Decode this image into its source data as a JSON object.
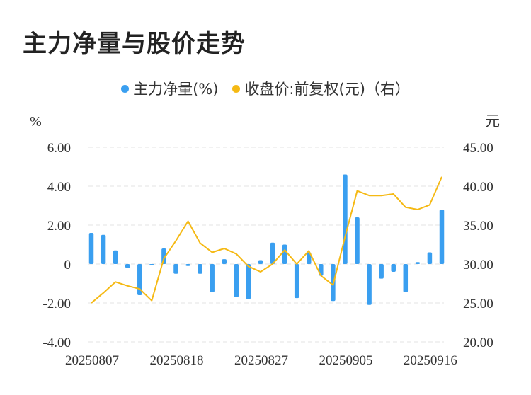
{
  "title": "主力净量与股价走势",
  "colors": {
    "bar": "#3a9ff0",
    "line": "#f5b914",
    "grid": "#e3e3e3",
    "text": "#333333"
  },
  "chart_data": {
    "type": "bar+line",
    "left_unit": "%",
    "right_unit": "元",
    "legend": [
      {
        "name": "主力净量(%)",
        "color": "#3a9ff0"
      },
      {
        "name": "收盘价:前复权(元)（右）",
        "color": "#f5b914"
      }
    ],
    "y_left": {
      "min": -4,
      "max": 6,
      "ticks": [
        "6.00",
        "4.00",
        "2.00",
        "0",
        "-2.00",
        "-4.00"
      ],
      "tick_values": [
        6,
        4,
        2,
        0,
        -2,
        -4
      ]
    },
    "y_right": {
      "min": 20,
      "max": 45,
      "ticks": [
        "45.00",
        "40.00",
        "35.00",
        "30.00",
        "25.00",
        "20.00"
      ],
      "tick_values": [
        45,
        40,
        35,
        30,
        25,
        20
      ]
    },
    "x_tick_labels": [
      "20250807",
      "20250818",
      "20250827",
      "20250905",
      "20250916"
    ],
    "x_tick_indices": [
      0,
      7,
      14,
      21,
      28
    ],
    "dates": [
      "20250807",
      "20250808",
      "20250811",
      "20250812",
      "20250813",
      "20250814",
      "20250815",
      "20250818",
      "20250819",
      "20250820",
      "20250821",
      "20250822",
      "20250825",
      "20250826",
      "20250827",
      "20250828",
      "20250829",
      "20250901",
      "20250902",
      "20250903",
      "20250904",
      "20250905",
      "20250908",
      "20250909",
      "20250910",
      "20250911",
      "20250912",
      "20250915",
      "20250916",
      "20250917"
    ],
    "series": [
      {
        "name": "主力净量(%)",
        "type": "bar",
        "values": [
          1.6,
          1.5,
          0.7,
          -0.2,
          -1.6,
          -0.05,
          0.8,
          -0.5,
          -0.1,
          -0.5,
          -1.45,
          0.25,
          -1.7,
          -1.8,
          0.2,
          1.1,
          1.0,
          -1.75,
          0.6,
          -0.6,
          -1.9,
          4.6,
          2.4,
          -2.1,
          -0.75,
          -0.4,
          -1.45,
          0.1,
          0.6,
          2.8
        ]
      },
      {
        "name": "收盘价:前复权(元)（右）",
        "type": "line",
        "values": [
          25.0,
          26.3,
          27.7,
          27.2,
          26.8,
          25.3,
          30.7,
          33.0,
          35.5,
          32.7,
          31.5,
          32.0,
          31.3,
          29.7,
          29.0,
          30.0,
          31.8,
          30.0,
          31.7,
          28.5,
          27.3,
          33.5,
          39.4,
          38.8,
          38.8,
          39.0,
          37.3,
          37.0,
          37.6,
          41.2
        ]
      }
    ]
  }
}
